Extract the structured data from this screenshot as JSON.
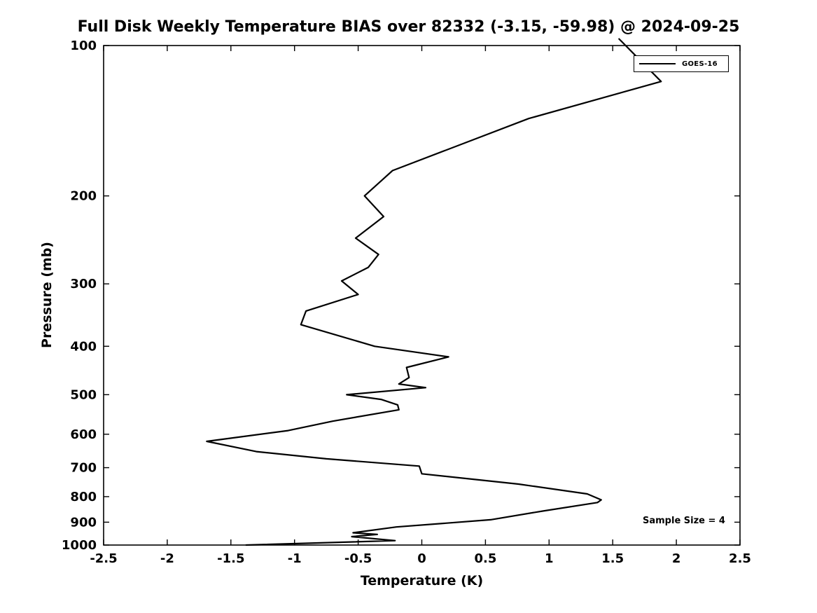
{
  "title": "Full Disk Weekly Temperature BIAS over 82332 (-3.15, -59.98) @ 2024-09-25",
  "annotation": "Sample Size = 4",
  "legend": {
    "entries": [
      {
        "label": "GOES-16",
        "color": "#000000"
      }
    ]
  },
  "chart_data": {
    "type": "line",
    "title": "Full Disk Weekly Temperature BIAS over 82332 (-3.15, -59.98) @ 2024-09-25",
    "xlabel": "Temperature (K)",
    "ylabel": "Pressure (mb)",
    "xlim": [
      -2.5,
      2.5
    ],
    "ylim": [
      100,
      1000
    ],
    "yscale": "log",
    "y_axis_inverted": true,
    "grid": false,
    "legend_position": "top-right",
    "x_ticks": [
      -2.5,
      -2,
      -1.5,
      -1,
      -0.5,
      0,
      0.5,
      1,
      1.5,
      2,
      2.5
    ],
    "x_tick_labels": [
      "-2.5",
      "-2",
      "-1.5",
      "-1",
      "-0.5",
      "0",
      "0.5",
      "1",
      "1.5",
      "2",
      "2.5"
    ],
    "y_ticks": [
      100,
      200,
      300,
      400,
      500,
      600,
      700,
      800,
      900,
      1000
    ],
    "y_tick_labels": [
      "100",
      "200",
      "300",
      "400",
      "500",
      "600",
      "700",
      "800",
      "900",
      "1000"
    ],
    "annotation": "Sample Size = 4",
    "series": [
      {
        "name": "GOES-16",
        "color": "#000000",
        "points_format": "[temperature_K, pressure_mb]",
        "points": [
          [
            1.55,
            97
          ],
          [
            1.88,
            118
          ],
          [
            0.84,
            140
          ],
          [
            -0.23,
            178
          ],
          [
            -0.45,
            200
          ],
          [
            -0.3,
            220
          ],
          [
            -0.52,
            243
          ],
          [
            -0.34,
            262
          ],
          [
            -0.42,
            278
          ],
          [
            -0.63,
            296
          ],
          [
            -0.5,
            315
          ],
          [
            -0.91,
            340
          ],
          [
            -0.95,
            362
          ],
          [
            -0.37,
            400
          ],
          [
            0.21,
            420
          ],
          [
            -0.12,
            441
          ],
          [
            -0.1,
            462
          ],
          [
            -0.18,
            476
          ],
          [
            0.03,
            484
          ],
          [
            -0.59,
            500
          ],
          [
            -0.32,
            511
          ],
          [
            -0.19,
            524
          ],
          [
            -0.18,
            536
          ],
          [
            -0.7,
            565
          ],
          [
            -1.05,
            590
          ],
          [
            -1.69,
            620
          ],
          [
            -1.3,
            650
          ],
          [
            -0.75,
            672
          ],
          [
            -0.02,
            695
          ],
          [
            0.0,
            720
          ],
          [
            0.76,
            755
          ],
          [
            1.3,
            790
          ],
          [
            1.41,
            812
          ],
          [
            1.38,
            822
          ],
          [
            0.95,
            855
          ],
          [
            0.54,
            890
          ],
          [
            -0.2,
            920
          ],
          [
            -0.54,
            945
          ],
          [
            -0.35,
            952
          ],
          [
            -0.55,
            962
          ],
          [
            -0.21,
            980
          ],
          [
            -1.38,
            1000
          ]
        ]
      }
    ]
  }
}
